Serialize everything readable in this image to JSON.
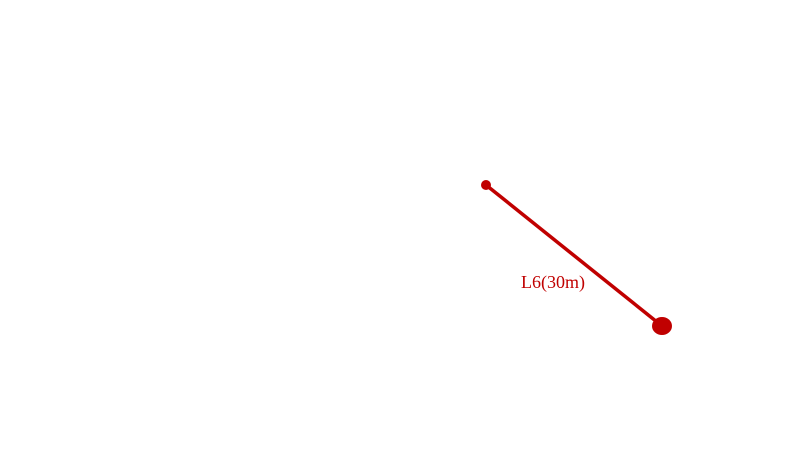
{
  "segment": {
    "label": "L6(30m)",
    "color": "#c00000"
  }
}
